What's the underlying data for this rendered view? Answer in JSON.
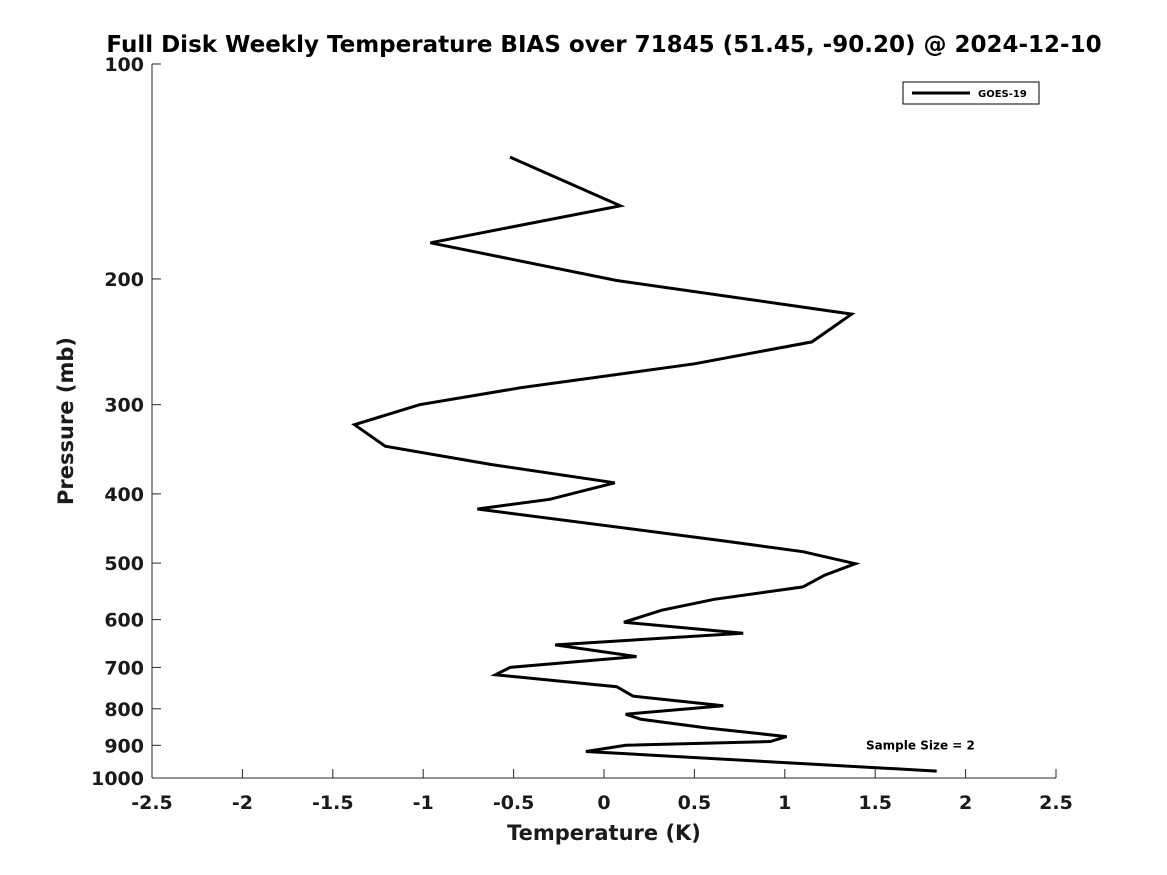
{
  "chart_data": {
    "type": "line",
    "title": "Full Disk Weekly Temperature BIAS over 71845 (51.45, -90.20) @ 2024-12-10",
    "xlabel": "Temperature (K)",
    "ylabel": "Pressure (mb)",
    "xlim": [
      -2.5,
      2.5
    ],
    "ylim": [
      100,
      1000
    ],
    "y_scale": "log",
    "y_direction": "reversed",
    "x_ticks": [
      "-2.5",
      "-2",
      "-1.5",
      "-1",
      "-0.5",
      "0",
      "0.5",
      "1",
      "1.5",
      "2",
      "2.5"
    ],
    "x_tick_values": [
      -2.5,
      -2,
      -1.5,
      -1,
      -0.5,
      0,
      0.5,
      1,
      1.5,
      2,
      2.5
    ],
    "y_ticks": [
      "100",
      "200",
      "300",
      "400",
      "500",
      "600",
      "700",
      "800",
      "900",
      "1000"
    ],
    "y_tick_values": [
      100,
      200,
      300,
      400,
      500,
      600,
      700,
      800,
      900,
      1000
    ],
    "grid": false,
    "legend_position": "top-right",
    "series": [
      {
        "name": "GOES-19",
        "color": "#000000",
        "points": [
          [
            -0.52,
            135
          ],
          [
            0.09,
            158
          ],
          [
            -0.96,
            178
          ],
          [
            0.07,
            201
          ],
          [
            1.37,
            224
          ],
          [
            1.15,
            245
          ],
          [
            0.5,
            263
          ],
          [
            -0.46,
            284
          ],
          [
            -1.02,
            300
          ],
          [
            -1.38,
            320
          ],
          [
            -1.21,
            343
          ],
          [
            -0.62,
            364
          ],
          [
            0.06,
            386
          ],
          [
            -0.3,
            407
          ],
          [
            -0.7,
            420
          ],
          [
            0.65,
            465
          ],
          [
            1.1,
            482
          ],
          [
            1.39,
            501
          ],
          [
            1.22,
            520
          ],
          [
            1.1,
            540
          ],
          [
            0.61,
            562
          ],
          [
            0.32,
            582
          ],
          [
            0.11,
            605
          ],
          [
            0.77,
            627
          ],
          [
            -0.27,
            651
          ],
          [
            0.18,
            676
          ],
          [
            -0.52,
            700
          ],
          [
            -0.6,
            717
          ],
          [
            0.07,
            745
          ],
          [
            0.16,
            768
          ],
          [
            0.66,
            792
          ],
          [
            0.12,
            814
          ],
          [
            0.2,
            827
          ],
          [
            0.57,
            851
          ],
          [
            1.01,
            875
          ],
          [
            0.92,
            889
          ],
          [
            0.12,
            900
          ],
          [
            -0.1,
            918
          ],
          [
            1.84,
            978
          ]
        ]
      }
    ],
    "annotations": [
      {
        "text": "Sample Size = 2",
        "x": 1.75,
        "y": 900
      }
    ]
  }
}
